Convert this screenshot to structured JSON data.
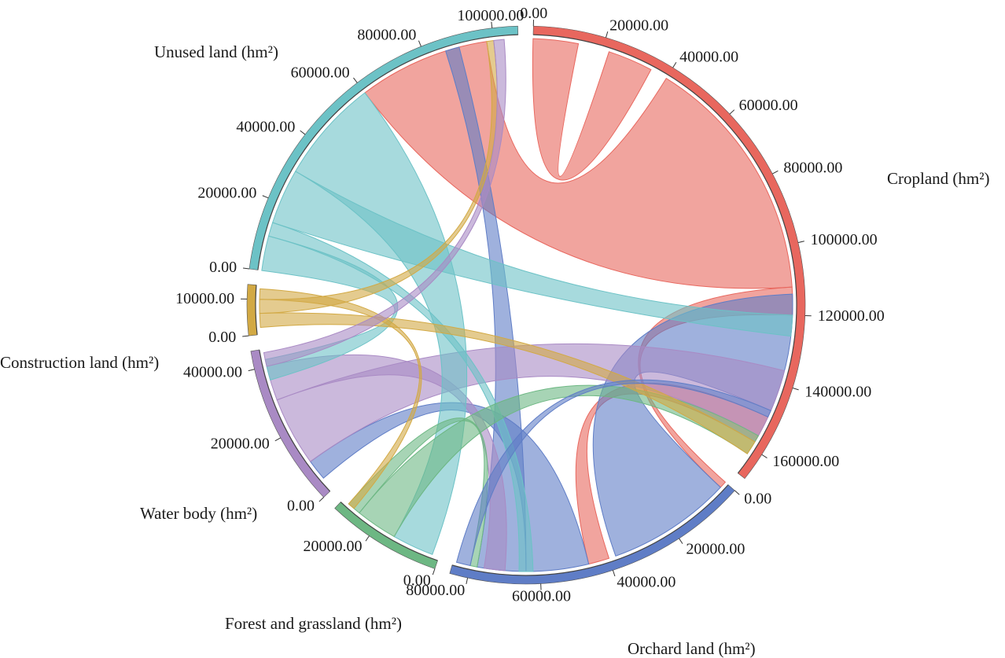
{
  "chart_data": {
    "type": "chord",
    "sectors": [
      {
        "name": "Cropland (hm²)",
        "total": 168000,
        "color": "#E8675E",
        "ticks": [
          "0.00",
          "20000.00",
          "40000.00",
          "60000.00",
          "80000.00",
          "100000.00",
          "120000.00",
          "140000.00",
          "160000.00"
        ]
      },
      {
        "name": "Orchard land (hm²)",
        "total": 85000,
        "color": "#5F7DC6",
        "ticks": [
          "0.00",
          "20000.00",
          "40000.00",
          "60000.00",
          "80000.00"
        ]
      },
      {
        "name": "Forest and grassland (hm²)",
        "total": 32000,
        "color": "#6DB783",
        "ticks": [
          "0.00",
          "20000.00"
        ]
      },
      {
        "name": "Water body (hm²)",
        "total": 45000,
        "color": "#A98AC4",
        "ticks": [
          "0.00",
          "20000.00",
          "40000.00"
        ]
      },
      {
        "name": "Construction land (hm²)",
        "total": 14000,
        "color": "#D2A944",
        "ticks": [
          "0.00",
          "10000.00"
        ]
      },
      {
        "name": "Unused land (hm²)",
        "total": 107000,
        "color": "#6CC2C6",
        "ticks": [
          "0.00",
          "20000.00",
          "40000.00",
          "60000.00",
          "80000.00",
          "100000.00"
        ]
      }
    ]
  }
}
